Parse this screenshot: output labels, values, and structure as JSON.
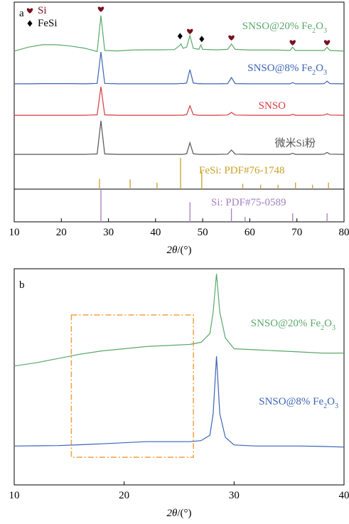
{
  "chart_data": [
    {
      "type": "line",
      "letter": "a",
      "xlabel": "2θ/(°)",
      "xlim": [
        10,
        80
      ],
      "xticks": [
        10,
        20,
        30,
        40,
        50,
        60,
        70,
        80
      ],
      "ylim": [
        0,
        100
      ],
      "x": [
        10,
        13,
        16,
        19,
        22,
        25,
        27.6,
        28.4,
        29.2,
        32,
        35,
        38,
        41,
        44,
        45.0,
        45.4,
        45.8,
        46.6,
        47.3,
        48.0,
        49.2,
        49.6,
        50.0,
        53,
        55.3,
        56.1,
        56.9,
        60,
        63,
        66,
        68.5,
        69.1,
        69.7,
        72,
        75,
        75.8,
        76.4,
        77,
        80
      ],
      "series": [
        {
          "name": "SNSO@20% Fe2O3",
          "color": "#5aa86c",
          "values": [
            77.7,
            79.5,
            80.6,
            80.6,
            80,
            79,
            77.5,
            93.9,
            78,
            77.8,
            78.2,
            78.3,
            78.3,
            78.4,
            80,
            81,
            79,
            79.5,
            84.8,
            79,
            78.5,
            80.5,
            78.5,
            78.3,
            78.5,
            80.9,
            78.5,
            78.2,
            78.2,
            78.2,
            78,
            79.5,
            78,
            78,
            78,
            78,
            79.5,
            78,
            77.7
          ]
        },
        {
          "name": "SNSO@8% Fe2O3",
          "color": "#3b63b4",
          "values": [
            62.8,
            62.8,
            62.9,
            62.9,
            62.9,
            62.8,
            63,
            77.3,
            63,
            62.8,
            62.8,
            62.8,
            62.8,
            62.8,
            62.9,
            63,
            62.9,
            63.2,
            69.3,
            63.2,
            62.8,
            62.9,
            62.8,
            62.8,
            62.9,
            65.7,
            62.9,
            62.8,
            62.8,
            62.8,
            62.8,
            63.4,
            62.8,
            62.8,
            62.8,
            62.9,
            64,
            62.9,
            62.8
          ]
        },
        {
          "name": "SNSO",
          "color": "#d83a40",
          "values": [
            48.5,
            48.5,
            48.5,
            48.5,
            48.5,
            48.5,
            48.7,
            61.5,
            48.7,
            48.5,
            48.5,
            48.5,
            48.5,
            48.5,
            48.5,
            48.6,
            48.5,
            48.8,
            52.8,
            48.8,
            48.5,
            48.5,
            48.5,
            48.5,
            48.6,
            49.8,
            48.6,
            48.5,
            48.5,
            48.5,
            48.5,
            48.9,
            48.5,
            48.5,
            48.5,
            48.6,
            49.2,
            48.6,
            48.5
          ]
        },
        {
          "name": "微米Si粉",
          "color": "#555555",
          "values": [
            30.7,
            30.7,
            30.7,
            30.7,
            30.7,
            30.7,
            30.9,
            46,
            30.9,
            30.7,
            30.7,
            30.7,
            30.7,
            30.7,
            30.7,
            30.7,
            30.7,
            31,
            36,
            31,
            30.7,
            30.7,
            30.7,
            30.7,
            30.8,
            32.7,
            30.8,
            30.7,
            30.7,
            30.7,
            30.7,
            31.2,
            30.7,
            30.7,
            30.7,
            30.8,
            31.6,
            30.8,
            30.7
          ]
        }
      ],
      "references": [
        {
          "name": "FeSi: PDF#76-1748",
          "color": "#c9a227",
          "ylim": [
            0,
            100
          ],
          "x": [
            28.1,
            34.6,
            40.3,
            45.3,
            49.8,
            58.5,
            62.3,
            66.0,
            69.7,
            73.3,
            76.7
          ],
          "values": [
            33,
            31,
            21,
            100,
            57,
            17,
            14,
            14,
            21,
            14,
            21
          ]
        },
        {
          "name": "Si: PDF#75-0589",
          "color": "#a57fc0",
          "ylim": [
            0,
            100
          ],
          "x": [
            28.4,
            47.3,
            56.1,
            59.0,
            69.1,
            76.4
          ],
          "values": [
            100,
            60,
            41,
            15,
            26,
            26
          ]
        }
      ],
      "phase_markers": [
        {
          "name": "Si",
          "symbol": "heart",
          "color": "#7a1020",
          "x": [
            28.4,
            47.3,
            56.1,
            69.1,
            76.4
          ],
          "y": [
            96.8,
            86.7,
            83.8,
            81.6,
            81.6
          ]
        },
        {
          "name": "FeSi",
          "symbol": "diamond",
          "color": "#000000",
          "x": [
            45.2,
            49.8
          ],
          "y": [
            84.5,
            83.2
          ]
        }
      ]
    },
    {
      "type": "line",
      "letter": "b",
      "xlabel": "2θ/(°)",
      "xlim": [
        10,
        40
      ],
      "xticks": [
        10,
        20,
        30,
        40
      ],
      "ylim": [
        0,
        100
      ],
      "x": [
        10,
        12,
        14,
        16,
        18,
        20,
        22,
        24,
        26,
        27,
        27.8,
        28.1,
        28.4,
        28.7,
        29.2,
        30,
        32,
        34,
        36,
        38,
        40
      ],
      "series": [
        {
          "name": "SNSO@20% Fe2O3",
          "color": "#5aa86c",
          "values": [
            55,
            56.5,
            58.5,
            60.5,
            62,
            63,
            64,
            64.5,
            65,
            66,
            70,
            80,
            97.7,
            80,
            68,
            63,
            62.5,
            62,
            61.5,
            61,
            61
          ]
        },
        {
          "name": "SNSO@8% Fe2O3",
          "color": "#3b63b4",
          "values": [
            18,
            18.1,
            18.2,
            18.6,
            19,
            19.5,
            20,
            20,
            20,
            20.5,
            23,
            33,
            59.5,
            33,
            22,
            18.5,
            18,
            18,
            18,
            17.8,
            17.5
          ]
        }
      ],
      "highlight": {
        "color": "#f0a040",
        "xlim": [
          15.2,
          26.3
        ],
        "ylim": [
          12.8,
          78.6
        ]
      }
    }
  ]
}
